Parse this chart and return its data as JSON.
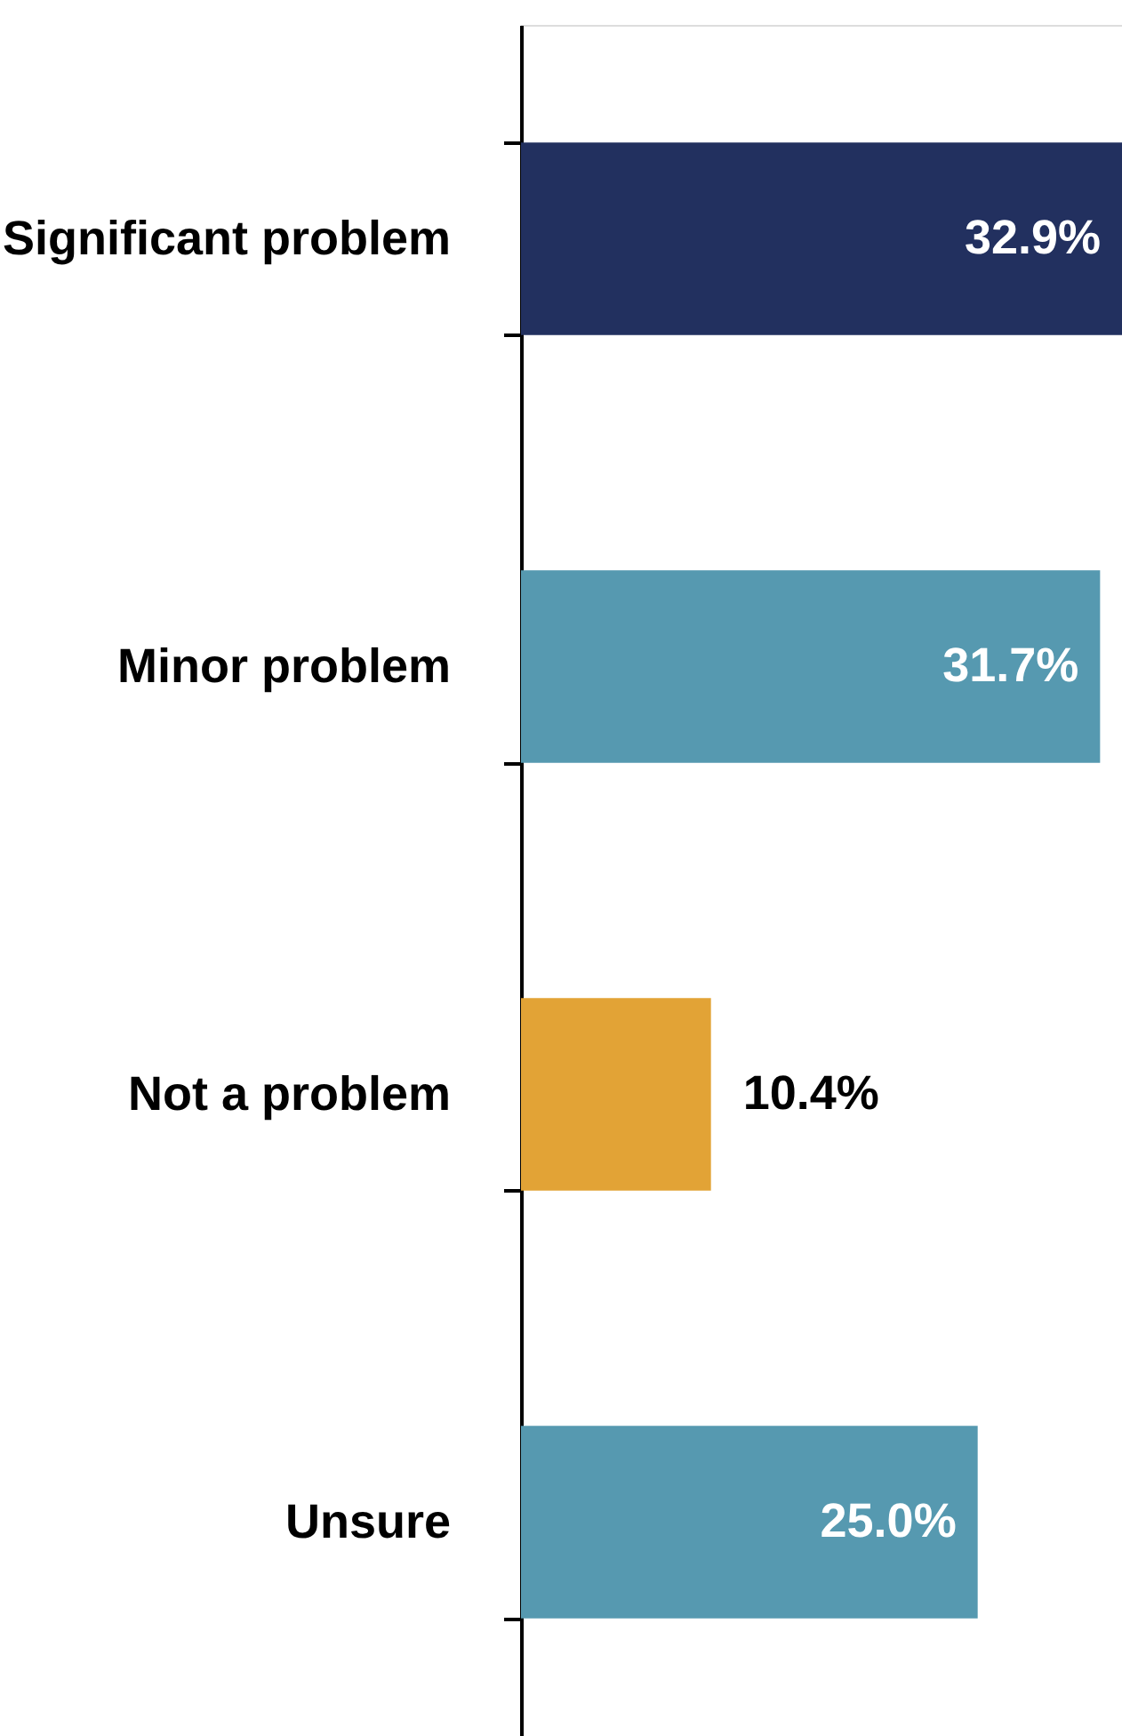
{
  "chart_data": {
    "type": "bar",
    "orientation": "horizontal",
    "categories": [
      "Significant problem",
      "Minor problem",
      "Not a problem",
      "Unsure"
    ],
    "values": [
      32.9,
      31.7,
      10.4,
      25.0
    ],
    "colors": [
      "#22305f",
      "#5699b0",
      "#e2a336",
      "#5699b0"
    ],
    "value_labels": [
      "32.9%",
      "31.7%",
      "10.4%",
      "25.0%"
    ],
    "grid": false
  }
}
